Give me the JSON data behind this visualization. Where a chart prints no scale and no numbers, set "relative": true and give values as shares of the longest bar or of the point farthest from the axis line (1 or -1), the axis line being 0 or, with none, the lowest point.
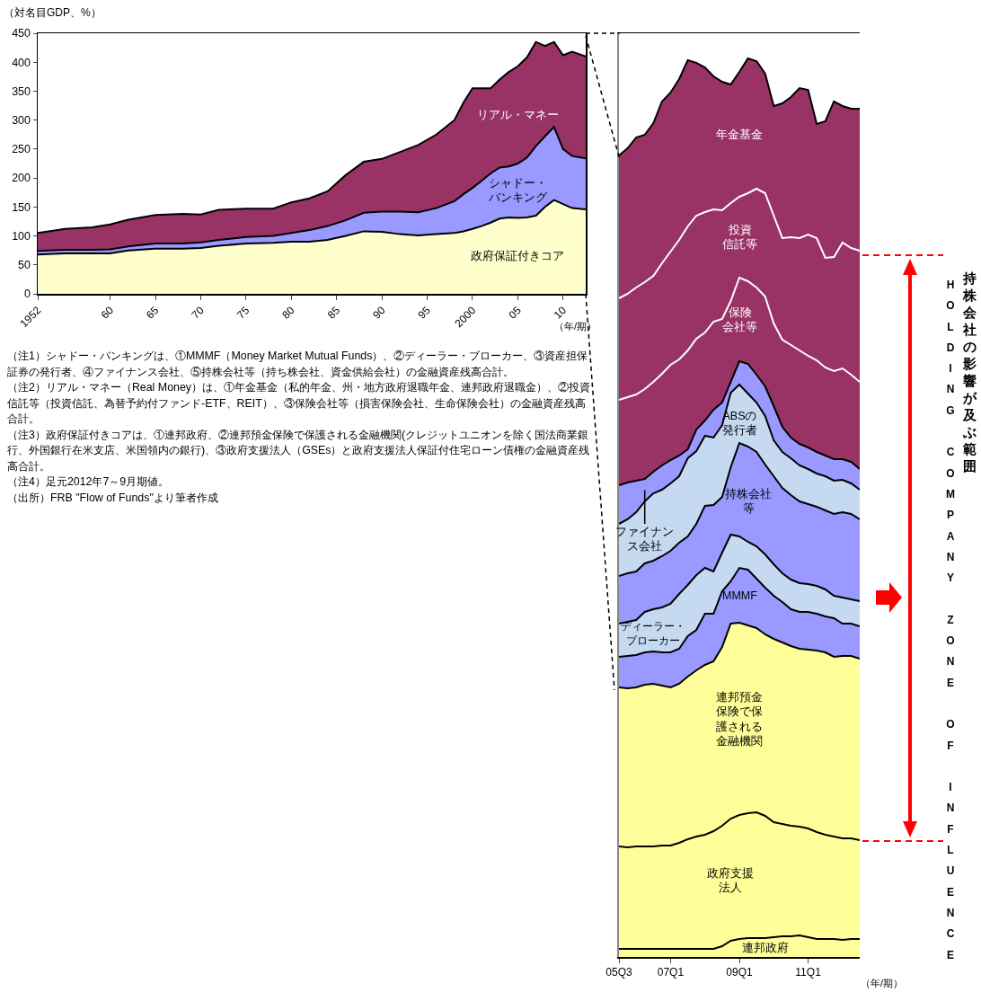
{
  "chart_data": [
    {
      "type": "area",
      "stacked": true,
      "ylabel": "（対名目GDP、%）",
      "xlabel": "（年/期）",
      "x": [
        1952,
        1955,
        1958,
        1960,
        1962,
        1965,
        1968,
        1970,
        1972,
        1975,
        1978,
        1980,
        1982,
        1984,
        1986,
        1988,
        1990,
        1992,
        1994,
        1996,
        1998,
        1999,
        2000,
        2001,
        2002,
        2003,
        2004,
        2005,
        2006,
        2007,
        2008,
        2009,
        2010,
        2011,
        2012.5
      ],
      "xlim": [
        1952,
        2012.5
      ],
      "xticks": [
        {
          "value": 1952,
          "label": "1952"
        },
        {
          "value": 1960,
          "label": "60"
        },
        {
          "value": 1965,
          "label": "65"
        },
        {
          "value": 1970,
          "label": "70"
        },
        {
          "value": 1975,
          "label": "75"
        },
        {
          "value": 1980,
          "label": "80"
        },
        {
          "value": 1985,
          "label": "85"
        },
        {
          "value": 1990,
          "label": "90"
        },
        {
          "value": 1995,
          "label": "95"
        },
        {
          "value": 2000,
          "label": "2000"
        },
        {
          "value": 2005,
          "label": "05"
        },
        {
          "value": 2010,
          "label": "10"
        }
      ],
      "ylim": [
        0,
        450
      ],
      "yticks": [
        0,
        50,
        100,
        150,
        200,
        250,
        300,
        350,
        400,
        450
      ],
      "series": [
        {
          "name": "政府保証付きコア",
          "color": "#ffffcc",
          "values": [
            68,
            70,
            70,
            70,
            75,
            78,
            78,
            79,
            83,
            87,
            88,
            90,
            90,
            93,
            100,
            108,
            107,
            103,
            101,
            103,
            105,
            108,
            112,
            117,
            123,
            130,
            132,
            131,
            132,
            135,
            150,
            162,
            155,
            148,
            146
          ]
        },
        {
          "name": "シャドー・バンキング",
          "color": "#9999ff",
          "values": [
            6,
            6,
            6,
            7,
            7,
            9,
            9,
            10,
            10,
            11,
            12,
            15,
            20,
            24,
            27,
            32,
            35,
            39,
            40,
            45,
            55,
            64,
            71,
            78,
            85,
            88,
            88,
            94,
            103,
            120,
            122,
            126,
            95,
            90,
            88
          ]
        },
        {
          "name": "リアル・マネー",
          "color": "#993366",
          "values": [
            31,
            36,
            39,
            43,
            46,
            49,
            51,
            48,
            52,
            49,
            47,
            53,
            55,
            60,
            78,
            88,
            91,
            103,
            116,
            127,
            140,
            158,
            172,
            160,
            147,
            152,
            163,
            168,
            173,
            180,
            156,
            147,
            162,
            180,
            176
          ]
        }
      ],
      "annotations": [
        "（注1）シャドー・バンキングは、①MMMF（Money Market Mutual Funds）、②ディーラー・ブローカー、③資産担保証券の発行者、④ファイナンス会社、⑤持株会社等（持ち株会社、資金供給会社）の金融資産残高合計。",
        "（注2）リアル・マネー（Real Money）は、①年金基金（私的年金、州・地方政府退職年金、連邦政府退職金）、②投資信託等（投資信託、為替予約付ファンド-ETF、REIT）、③保険会社等（損害保険会社、生命保険会社）の金融資産残高合計。",
        "（注3）政府保証付きコアは、①連邦政府、②連邦預金保険で保護される金融機関(クレジットユニオンを除く国法商業銀行、外国銀行在米支店、米国領内の銀行)、③政府支援法人（GSEs）と政府支援法人保証付住宅ローン債権の金融資産残高合計。",
        "（注4）足元2012年7～9月期値。",
        "（出所）FRB \"Flow of Funds\"より筆者作成"
      ]
    },
    {
      "type": "area",
      "stacked": true,
      "relative": true,
      "xlabel": "（年/期）",
      "categories": [
        "05Q3",
        null,
        null,
        null,
        null,
        null,
        "07Q1",
        null,
        null,
        null,
        null,
        null,
        null,
        null,
        "09Q1",
        null,
        null,
        null,
        null,
        null,
        null,
        null,
        "11Q1",
        null,
        null,
        null,
        null,
        null,
        null
      ],
      "series": [
        {
          "name": "連邦政府",
          "color": "#ffff99",
          "values": [
            0.009,
            0.009,
            0.009,
            0.009,
            0.009,
            0.009,
            0.009,
            0.009,
            0.009,
            0.009,
            0.009,
            0.009,
            0.012,
            0.018,
            0.02,
            0.021,
            0.021,
            0.021,
            0.022,
            0.023,
            0.023,
            0.024,
            0.022,
            0.02,
            0.02,
            0.02,
            0.019,
            0.02,
            0.02
          ]
        },
        {
          "name": "政府支援法人",
          "color": "#ffff99",
          "values": [
            0.114,
            0.113,
            0.114,
            0.114,
            0.114,
            0.115,
            0.115,
            0.118,
            0.122,
            0.125,
            0.127,
            0.131,
            0.134,
            0.136,
            0.138,
            0.139,
            0.14,
            0.136,
            0.128,
            0.125,
            0.123,
            0.121,
            0.121,
            0.119,
            0.116,
            0.114,
            0.113,
            0.112,
            0.11
          ]
        },
        {
          "name": "連邦預金保険で保護される金融機関",
          "color": "#ffff99",
          "values": [
            0.177,
            0.177,
            0.177,
            0.18,
            0.181,
            0.178,
            0.176,
            0.177,
            0.181,
            0.185,
            0.189,
            0.189,
            0.199,
            0.217,
            0.214,
            0.209,
            0.205,
            0.202,
            0.204,
            0.202,
            0.2,
            0.198,
            0.199,
            0.202,
            0.203,
            0.2,
            0.203,
            0.203,
            0.202
          ]
        },
        {
          "name": "MMMF",
          "color": "#9999ff",
          "values": [
            0.034,
            0.036,
            0.036,
            0.036,
            0.036,
            0.037,
            0.039,
            0.039,
            0.045,
            0.045,
            0.057,
            0.053,
            0.062,
            0.047,
            0.061,
            0.062,
            0.055,
            0.052,
            0.048,
            0.045,
            0.041,
            0.041,
            0.042,
            0.041,
            0.04,
            0.043,
            0.036,
            0.036,
            0.036
          ]
        },
        {
          "name": "ディーラー・ブローカー",
          "color": "#c5d9f1",
          "values": [
            0.037,
            0.038,
            0.039,
            0.045,
            0.047,
            0.05,
            0.054,
            0.061,
            0.057,
            0.061,
            0.051,
            0.047,
            0.043,
            0.052,
            0.035,
            0.031,
            0.036,
            0.037,
            0.035,
            0.032,
            0.033,
            0.032,
            0.031,
            0.031,
            0.03,
            0.025,
            0.029,
            0.027,
            0.028
          ]
        },
        {
          "name": "持株会社等",
          "color": "#9999ff",
          "values": [
            0.053,
            0.054,
            0.054,
            0.054,
            0.054,
            0.057,
            0.059,
            0.057,
            0.054,
            0.057,
            0.069,
            0.074,
            0.062,
            0.075,
            0.104,
            0.106,
            0.105,
            0.1,
            0.098,
            0.095,
            0.094,
            0.091,
            0.089,
            0.088,
            0.088,
            0.091,
            0.095,
            0.095,
            0.091
          ]
        },
        {
          "name": "ABSの発行者",
          "color": "#c5d9f1",
          "values": [
            0.058,
            0.06,
            0.066,
            0.069,
            0.075,
            0.074,
            0.075,
            0.074,
            0.087,
            0.081,
            0.078,
            0.075,
            0.08,
            0.083,
            0.065,
            0.059,
            0.055,
            0.054,
            0.04,
            0.04,
            0.041,
            0.04,
            0.039,
            0.037,
            0.038,
            0.037,
            0.036,
            0.034,
            0.033
          ]
        },
        {
          "name": "ファイナンス会社",
          "color": "#9999ff",
          "values": [
            0.043,
            0.041,
            0.035,
            0.025,
            0.024,
            0.027,
            0.026,
            0.023,
            0.01,
            0.024,
            0.017,
            0.031,
            0.025,
            0.012,
            0.026,
            0.033,
            0.031,
            0.033,
            0.038,
            0.028,
            0.023,
            0.024,
            0.024,
            0.024,
            0.023,
            0.024,
            0.023,
            0.024,
            0.023
          ]
        },
        {
          "name": "保険会社等",
          "color": "#993366",
          "values": [
            0.095,
            0.095,
            0.096,
            0.1,
            0.1,
            0.102,
            0.106,
            0.107,
            0.11,
            0.101,
            0.098,
            0.098,
            0.093,
            0.09,
            0.093,
            0.092,
            0.097,
            0.1,
            0.092,
            0.097,
            0.103,
            0.104,
            0.102,
            0.102,
            0.098,
            0.098,
            0.101,
            0.097,
            0.097
          ]
        },
        {
          "name": "投資信託等",
          "color": "#993366",
          "values": [
            0.113,
            0.115,
            0.119,
            0.119,
            0.118,
            0.123,
            0.126,
            0.133,
            0.138,
            0.137,
            0.134,
            0.125,
            0.121,
            0.109,
            0.09,
            0.098,
            0.11,
            0.115,
            0.12,
            0.113,
            0.12,
            0.125,
            0.135,
            0.136,
            0.122,
            0.127,
            0.14,
            0.141,
            0.146
          ]
        },
        {
          "name": "年金基金",
          "color": "#993366",
          "values": [
            0.159,
            0.162,
            0.167,
            0.164,
            0.17,
            0.18,
            0.177,
            0.179,
            0.185,
            0.17,
            0.161,
            0.148,
            0.143,
            0.132,
            0.139,
            0.15,
            0.142,
            0.133,
            0.122,
            0.15,
            0.156,
            0.167,
            0.161,
            0.127,
            0.152,
            0.173,
            0.152,
            0.155,
            0.158
          ]
        }
      ],
      "annotations": [
        "持株会社の影響が及ぶ範囲",
        "HOLDING",
        "COMPANY",
        "ZONE",
        "OF",
        "INFLUENCE"
      ]
    }
  ]
}
